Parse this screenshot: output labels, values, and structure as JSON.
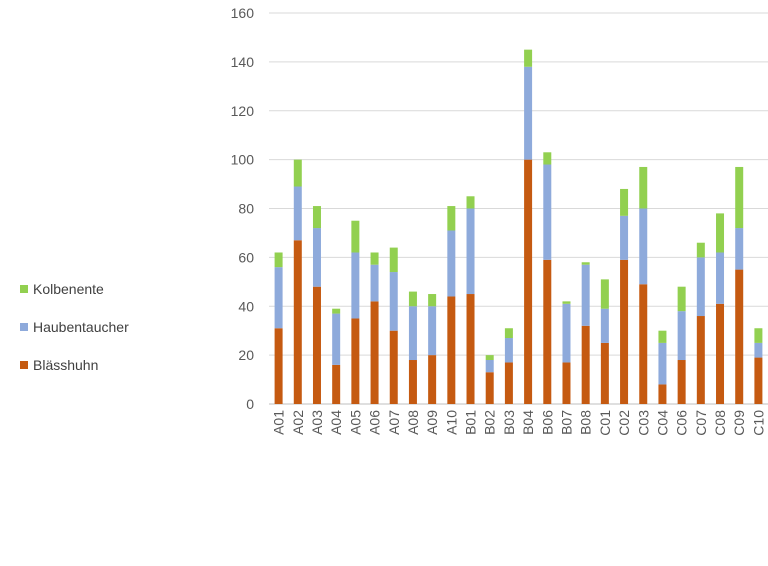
{
  "chart_data": {
    "type": "bar",
    "stacked": true,
    "title": "",
    "xlabel": "",
    "ylabel": "",
    "ylim": [
      0,
      160
    ],
    "yticks": [
      0,
      20,
      40,
      60,
      80,
      100,
      120,
      140,
      160
    ],
    "grid": true,
    "legend_position": "left",
    "categories": [
      "A01",
      "A02",
      "A03",
      "A04",
      "A05",
      "A06",
      "A07",
      "A08",
      "A09",
      "A10",
      "B01",
      "B02",
      "B03",
      "B04",
      "B06",
      "B07",
      "B08",
      "C01",
      "C02",
      "C03",
      "C04",
      "C06",
      "C07",
      "C08",
      "C09",
      "C10"
    ],
    "series": [
      {
        "name": "Blässhuhn",
        "color": "#c55a11",
        "values": [
          31,
          67,
          48,
          16,
          35,
          42,
          30,
          18,
          20,
          44,
          45,
          13,
          17,
          100,
          59,
          17,
          32,
          25,
          59,
          49,
          8,
          18,
          36,
          41,
          55,
          19
        ]
      },
      {
        "name": "Haubentaucher",
        "color": "#8eaadb",
        "values": [
          25,
          22,
          24,
          21,
          27,
          15,
          24,
          22,
          20,
          27,
          35,
          5,
          10,
          38,
          39,
          24,
          25,
          14,
          18,
          31,
          17,
          20,
          24,
          21,
          17,
          6
        ]
      },
      {
        "name": "Kolbenente",
        "color": "#92d050",
        "values": [
          6,
          11,
          9,
          2,
          13,
          5,
          10,
          6,
          5,
          10,
          5,
          2,
          4,
          7,
          5,
          1,
          1,
          12,
          11,
          17,
          5,
          10,
          6,
          16,
          25,
          6
        ]
      }
    ]
  },
  "legend": {
    "items": [
      {
        "label": "Kolbenente",
        "color": "#92d050"
      },
      {
        "label": "Haubentaucher",
        "color": "#8eaadb"
      },
      {
        "label": "Blässhuhn",
        "color": "#c55a11"
      }
    ]
  }
}
